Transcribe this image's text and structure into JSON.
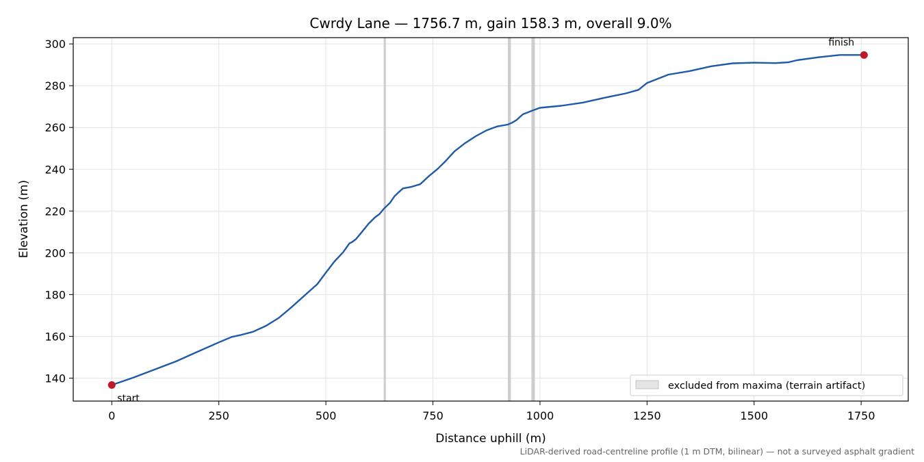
{
  "chart_data": {
    "type": "line",
    "title": "Cwrdy Lane — 1756.7 m, gain 158.3 m, overall 9.0%",
    "xlabel": "Distance uphill (m)",
    "ylabel": "Elevation (m)",
    "xlim": [
      -90,
      1860
    ],
    "ylim": [
      129,
      303
    ],
    "xticks": [
      0,
      250,
      500,
      750,
      1000,
      1250,
      1500,
      1750
    ],
    "yticks": [
      140,
      160,
      180,
      200,
      220,
      240,
      260,
      280,
      300
    ],
    "grid": true,
    "series": [
      {
        "color": "#1f5aa8",
        "x": [
          0,
          50,
          100,
          150,
          200,
          250,
          280,
          300,
          330,
          360,
          390,
          420,
          450,
          480,
          500,
          520,
          540,
          555,
          560,
          570,
          585,
          600,
          615,
          625,
          635,
          640,
          650,
          660,
          670,
          680,
          700,
          720,
          740,
          760,
          780,
          800,
          825,
          850,
          875,
          900,
          925,
          935,
          945,
          960,
          985,
          1000,
          1050,
          1100,
          1150,
          1200,
          1230,
          1250,
          1275,
          1300,
          1350,
          1400,
          1450,
          1500,
          1550,
          1580,
          1600,
          1650,
          1700,
          1756.7
        ],
        "y": [
          136.7,
          140.2,
          144.1,
          148.0,
          152.6,
          157.1,
          159.7,
          160.6,
          162.2,
          165.0,
          168.8,
          174.0,
          179.5,
          185.0,
          190.5,
          195.8,
          200.2,
          204.5,
          205.0,
          206.5,
          210.2,
          214.0,
          217.0,
          218.5,
          221.0,
          222.0,
          224.0,
          227.0,
          229.0,
          230.8,
          231.6,
          232.8,
          236.6,
          240.0,
          244.0,
          248.5,
          252.5,
          255.8,
          258.6,
          260.5,
          261.4,
          262.3,
          263.5,
          266.3,
          268.3,
          269.4,
          270.4,
          271.9,
          274.2,
          276.3,
          278.0,
          281.3,
          283.3,
          285.3,
          287.0,
          289.3,
          290.7,
          291.0,
          290.8,
          291.2,
          292.2,
          293.6,
          294.7,
          294.7
        ]
      }
    ],
    "excluded_bands": [
      [
        635,
        640
      ],
      [
        925,
        932
      ],
      [
        980,
        988
      ]
    ],
    "annotations": [
      {
        "label": "start",
        "x": 0,
        "y": 136.7
      },
      {
        "label": "finish",
        "x": 1756.7,
        "y": 294.7
      }
    ],
    "marker_color": "#c0182b",
    "legend": {
      "position": "bottom-right",
      "label": "excluded from maxima (terrain artifact)"
    },
    "footnote": "LiDAR-derived road-centreline profile (1 m DTM, bilinear) — not a surveyed asphalt gradient"
  }
}
